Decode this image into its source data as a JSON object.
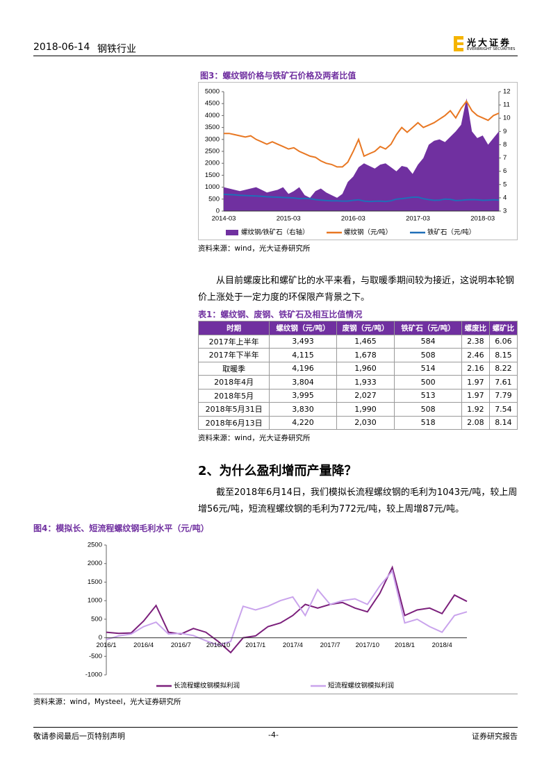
{
  "header": {
    "date": "2018-06-14",
    "industry": "钢铁行业",
    "logo": {
      "name": "光大证券",
      "english": "EVERBRIGHT SECURITIES"
    }
  },
  "figure3": {
    "title": "图3：螺纹钢价格与铁矿石价格及两者比值",
    "source": "资料来源：wind，光大证券研究所"
  },
  "paragraph1": "从目前螺废比和螺矿比的水平来看，与取暖季期间较为接近，这说明本轮钢价上涨处于一定力度的环保限产背景之下。",
  "table1": {
    "title": "表1：螺纹钢、废钢、铁矿石及相互比值情况",
    "columns": [
      "时期",
      "螺纹钢（元/吨）",
      "废钢（元/吨）",
      "铁矿石（元/吨）",
      "螺废比",
      "螺矿比"
    ],
    "rows": [
      [
        "2017年上半年",
        "3,493",
        "1,465",
        "584",
        "2.38",
        "6.06"
      ],
      [
        "2017年下半年",
        "4,115",
        "1,678",
        "508",
        "2.46",
        "8.15"
      ],
      [
        "取暖季",
        "4,196",
        "1,960",
        "514",
        "2.16",
        "8.22"
      ],
      [
        "2018年4月",
        "3,804",
        "1,933",
        "500",
        "1.97",
        "7.61"
      ],
      [
        "2018年5月",
        "3,995",
        "2,027",
        "513",
        "1.97",
        "7.79"
      ],
      [
        "2018年5月31日",
        "3,830",
        "1,990",
        "508",
        "1.92",
        "7.54"
      ],
      [
        "2018年6月13日",
        "4,220",
        "2,030",
        "518",
        "2.08",
        "8.14"
      ]
    ],
    "source": "资料来源：wind，光大证券研究所"
  },
  "section": {
    "heading": "2、为什么盈利增而产量降？"
  },
  "paragraph2": "截至2018年6月14日，我们模拟长流程螺纹钢的毛利为1043元/吨，较上周增56元/吨，短流程螺纹钢的毛利为772元/吨，较上周增87元/吨。",
  "figure4": {
    "title": "图4：模拟长、短流程螺纹钢毛利水平（元/吨）",
    "source": "资料来源：wind，Mysteel，光大证券研究所"
  },
  "footer": {
    "left": "敬请参阅最后一页特别声明",
    "page": "-4-",
    "right": "证券研究报告"
  },
  "chart_data": [
    {
      "type": "line",
      "categories": [
        "2014-03",
        null,
        null,
        null,
        null,
        null,
        null,
        null,
        null,
        null,
        null,
        null,
        "2015-03",
        null,
        null,
        null,
        null,
        null,
        null,
        null,
        null,
        null,
        null,
        null,
        "2016-03",
        null,
        null,
        null,
        null,
        null,
        null,
        null,
        null,
        null,
        null,
        null,
        "2017-03",
        null,
        null,
        null,
        null,
        null,
        null,
        null,
        null,
        null,
        null,
        null,
        "2018-03",
        null,
        null,
        null
      ],
      "ylim": [
        0,
        5000
      ],
      "yticks": [
        0,
        500,
        1000,
        1500,
        2000,
        2500,
        3000,
        3500,
        4000,
        4500,
        5000
      ],
      "y2lim": [
        3,
        12
      ],
      "y2ticks": [
        3,
        4,
        5,
        6,
        7,
        8,
        9,
        10,
        11,
        12
      ],
      "series": [
        {
          "name": "螺纹钢/铁矿石（右轴）",
          "type": "area",
          "axis": "y2",
          "color": "#7030a0",
          "values": [
            4.8,
            4.7,
            4.6,
            4.5,
            4.6,
            4.7,
            4.8,
            4.6,
            4.4,
            4.5,
            4.6,
            4.8,
            4.3,
            4.5,
            4.8,
            4.2,
            4.0,
            4.5,
            4.7,
            4.4,
            4.2,
            4.0,
            4.3,
            5.2,
            5.6,
            6.3,
            6.6,
            6.4,
            6.2,
            6.5,
            6.6,
            6.3,
            6.0,
            6.4,
            6.3,
            5.8,
            6.5,
            7.0,
            8.0,
            8.3,
            8.4,
            8.2,
            8.6,
            9.0,
            9.5,
            11.5,
            9.0,
            8.5,
            8.7,
            8.0,
            8.5,
            9.0
          ]
        },
        {
          "name": "螺纹钢（元/吨）",
          "color": "#e87722",
          "values": [
            3250,
            3250,
            3200,
            3150,
            3100,
            3150,
            3000,
            2900,
            2800,
            2900,
            2800,
            2700,
            2600,
            2650,
            2500,
            2400,
            2300,
            2250,
            2100,
            2000,
            1950,
            1850,
            1850,
            2050,
            2500,
            3000,
            2300,
            2400,
            2500,
            2700,
            2600,
            2800,
            3200,
            3500,
            3300,
            3500,
            3700,
            3500,
            3600,
            3700,
            3850,
            4000,
            4200,
            3900,
            4300,
            4600,
            4200,
            4000,
            3900,
            3800,
            4000,
            4100
          ]
        },
        {
          "name": "铁矿石（元/吨）",
          "color": "#1f6fb8",
          "values": [
            700,
            690,
            680,
            660,
            650,
            640,
            630,
            620,
            600,
            590,
            580,
            570,
            560,
            550,
            520,
            530,
            520,
            480,
            460,
            440,
            430,
            430,
            420,
            420,
            450,
            470,
            420,
            400,
            410,
            420,
            400,
            430,
            500,
            520,
            550,
            580,
            580,
            520,
            480,
            450,
            460,
            500,
            490,
            440,
            450,
            470,
            480,
            470,
            450,
            460,
            470,
            460
          ]
        }
      ]
    },
    {
      "type": "line",
      "categories": [
        "2016/1",
        null,
        null,
        "2016/4",
        null,
        null,
        "2016/7",
        null,
        null,
        "2016/10",
        null,
        null,
        "2017/1",
        null,
        null,
        "2017/4",
        null,
        null,
        "2017/7",
        null,
        null,
        "2017/10",
        null,
        null,
        "2018/1",
        null,
        null,
        "2018/4",
        null,
        null
      ],
      "ylim": [
        -1000,
        2500
      ],
      "yticks": [
        -1000,
        -500,
        0,
        500,
        1000,
        1500,
        2000,
        2500
      ],
      "series": [
        {
          "name": "长流程螺纹钢模拟利润",
          "color": "#7b1f7b",
          "values": [
            150,
            120,
            130,
            450,
            870,
            150,
            100,
            250,
            150,
            -100,
            -400,
            0,
            50,
            300,
            400,
            600,
            900,
            800,
            900,
            950,
            800,
            700,
            1200,
            1900,
            600,
            750,
            800,
            650,
            1150,
            980
          ]
        },
        {
          "name": "短流程螺纹钢模拟利润",
          "color": "#c9a3ec",
          "values": [
            -50,
            50,
            100,
            300,
            420,
            100,
            120,
            60,
            -80,
            -200,
            -100,
            850,
            750,
            850,
            1000,
            1100,
            600,
            1300,
            900,
            1000,
            1050,
            900,
            1400,
            1800,
            400,
            500,
            300,
            150,
            600,
            700
          ]
        }
      ]
    }
  ]
}
